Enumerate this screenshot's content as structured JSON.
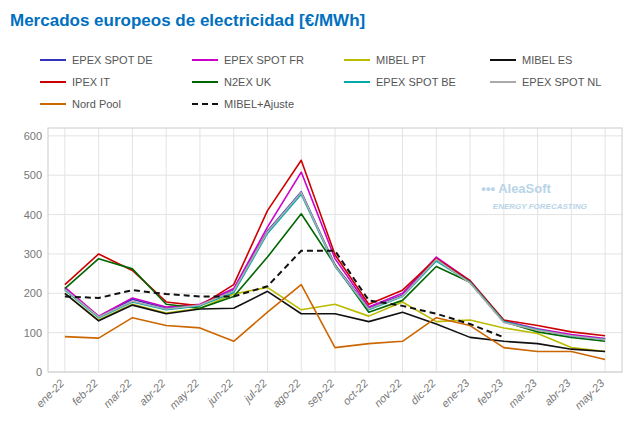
{
  "chart_data": {
    "type": "line",
    "title": "Mercados europeos de electricidad [€/MWh]",
    "categories": [
      "ene-22",
      "feb-22",
      "mar-22",
      "abr-22",
      "may-22",
      "jun-22",
      "jul-22",
      "ago-22",
      "sep-22",
      "oct-22",
      "nov-22",
      "dic-22",
      "ene-23",
      "feb-23",
      "mar-23",
      "abr-23",
      "may-23"
    ],
    "series": [
      {
        "name": "EPEX SPOT DE",
        "color": "#3333bb",
        "line_style": "solid",
        "values": [
          212,
          140,
          185,
          162,
          170,
          208,
          358,
          458,
          272,
          162,
          195,
          288,
          228,
          128,
          108,
          93,
          83
        ]
      },
      {
        "name": "EPEX SPOT FR",
        "color": "#cc00cc",
        "line_style": "solid",
        "values": [
          215,
          142,
          188,
          165,
          172,
          212,
          368,
          508,
          288,
          165,
          200,
          292,
          232,
          130,
          110,
          95,
          85
        ]
      },
      {
        "name": "MIBEL PT",
        "color": "#bbbb00",
        "line_style": "solid",
        "values": [
          200,
          132,
          172,
          150,
          162,
          198,
          215,
          158,
          172,
          142,
          178,
          128,
          132,
          112,
          98,
          62,
          52
        ]
      },
      {
        "name": "MIBEL ES",
        "color": "#111111",
        "line_style": "solid",
        "values": [
          200,
          130,
          170,
          148,
          160,
          162,
          205,
          148,
          148,
          128,
          152,
          122,
          88,
          78,
          72,
          58,
          52
        ]
      },
      {
        "name": "IPEX IT",
        "color": "#cc0000",
        "line_style": "solid",
        "values": [
          222,
          300,
          258,
          178,
          168,
          222,
          410,
          538,
          298,
          172,
          208,
          288,
          232,
          132,
          118,
          102,
          92
        ]
      },
      {
        "name": "N2EX UK",
        "color": "#006600",
        "line_style": "solid",
        "values": [
          212,
          288,
          262,
          172,
          162,
          192,
          292,
          402,
          272,
          152,
          182,
          268,
          228,
          128,
          102,
          88,
          78
        ]
      },
      {
        "name": "EPEX SPOT BE",
        "color": "#00aaaa",
        "line_style": "solid",
        "values": [
          208,
          138,
          178,
          158,
          168,
          202,
          352,
          452,
          268,
          158,
          192,
          282,
          228,
          128,
          108,
          91,
          83
        ]
      },
      {
        "name": "EPEX SPOT NL",
        "color": "#aaaaaa",
        "line_style": "solid",
        "values": [
          210,
          140,
          180,
          160,
          170,
          206,
          356,
          456,
          270,
          160,
          193,
          286,
          226,
          126,
          106,
          92,
          82
        ]
      },
      {
        "name": "Nord Pool",
        "color": "#cc6600",
        "line_style": "solid",
        "values": [
          90,
          86,
          138,
          118,
          112,
          78,
          152,
          222,
          62,
          72,
          78,
          138,
          118,
          62,
          52,
          52,
          32
        ]
      },
      {
        "name": "MIBEL+Ajuste",
        "color": "#111111",
        "line_style": "dashed",
        "values": [
          192,
          188,
          208,
          198,
          192,
          192,
          218,
          308,
          308,
          182,
          168,
          148,
          122,
          88,
          null,
          null,
          null
        ]
      }
    ],
    "ylim": [
      0,
      620
    ],
    "yticks": [
      0,
      100,
      200,
      300,
      400,
      500,
      600
    ],
    "grid": true,
    "legend": "top",
    "annotations": [
      {
        "text": "••• AleaSoft"
      },
      {
        "text": "ENERGY FORECASTING"
      }
    ]
  }
}
